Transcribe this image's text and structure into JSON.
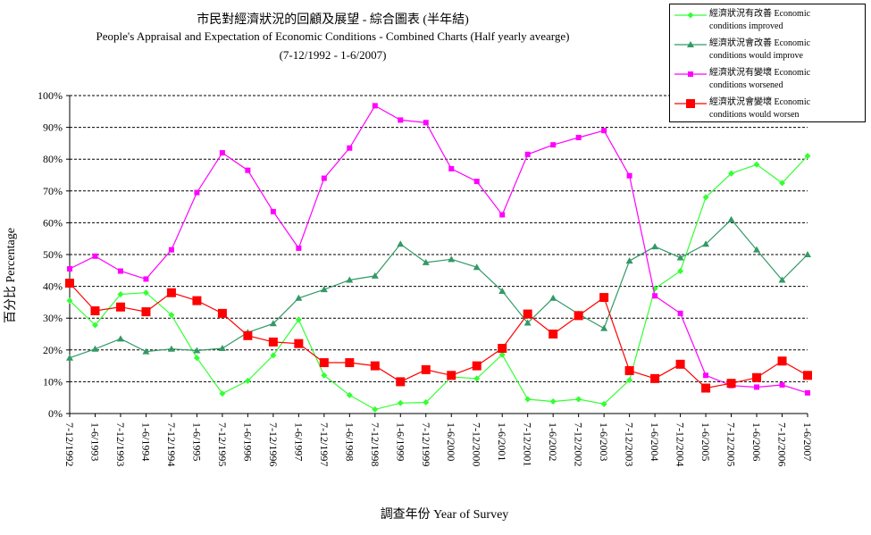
{
  "chart_data": {
    "type": "line",
    "title": "市民對經濟狀況的回顧及展望 - 綜合圖表 (半年結)",
    "subtitle": "People's Appraisal and Expectation of Economic Conditions - Combined Charts  (Half yearly aveargе)",
    "date_range": "(7-12/1992 - 1-6/2007)",
    "xlabel": "調查年份 Year of Survey",
    "ylabel": "百分比 Percentage",
    "ylim": [
      0,
      100
    ],
    "yticks": [
      "0%",
      "10%",
      "20%",
      "30%",
      "40%",
      "50%",
      "60%",
      "70%",
      "80%",
      "90%",
      "100%"
    ],
    "grid": "horizontal-dashed",
    "legend_position": "top-right",
    "categories": [
      "7-12/1992",
      "1-6/1993",
      "7-12/1993",
      "1-6/1994",
      "7-12/1994",
      "1-6/1995",
      "7-12/1995",
      "1-6/1996",
      "7-12/1996",
      "1-6/1997",
      "7-12/1997",
      "1-6/1998",
      "7-12/1998",
      "1-6/1999",
      "7-12/1999",
      "1-6/2000",
      "7-12/2000",
      "1-6/2001",
      "7-12/2001",
      "1-6/2002",
      "7-12/2002",
      "1-6/2003",
      "7-12/2003",
      "1-6/2004",
      "7-12/2004",
      "1-6/2005",
      "7-12/2005",
      "1-6/2006",
      "7-12/2006",
      "1-6/2007"
    ],
    "series": [
      {
        "name": "經濟狀況有改善 Economic conditions improved",
        "legend_lines": [
          "經濟狀況有改善 Economic",
          "conditions improved"
        ],
        "color": "#33ff33",
        "marker": "diamond",
        "values": [
          35.5,
          27.8,
          37.5,
          38.0,
          31.0,
          17.5,
          6.3,
          10.3,
          18.3,
          29.5,
          12.0,
          5.8,
          1.3,
          3.3,
          3.5,
          11.5,
          11.0,
          18.5,
          4.5,
          3.8,
          4.5,
          3.0,
          10.5,
          39.3,
          44.8,
          68.0,
          75.5,
          78.3,
          72.5,
          81.0
        ]
      },
      {
        "name": "經濟狀況會改善 Economic conditions would improve",
        "legend_lines": [
          "經濟狀況會改善 Economic",
          "conditions would improve"
        ],
        "color": "#339966",
        "marker": "triangle",
        "values": [
          17.5,
          20.3,
          23.5,
          19.5,
          20.3,
          19.8,
          20.5,
          25.5,
          28.3,
          36.3,
          39.0,
          42.0,
          43.3,
          53.3,
          47.5,
          48.5,
          46.0,
          38.5,
          28.5,
          36.3,
          31.3,
          26.8,
          48.0,
          52.5,
          49.0,
          53.3,
          61.0,
          51.5,
          42.0,
          50.0
        ]
      },
      {
        "name": "經濟狀況有變壞 Economic conditions worsened",
        "legend_lines": [
          "經濟狀況有變壞 Economic",
          "conditions worsened"
        ],
        "color": "#ff00ff",
        "marker": "square",
        "values": [
          45.5,
          49.5,
          44.8,
          42.3,
          51.5,
          69.5,
          82.0,
          76.5,
          63.5,
          52.0,
          74.0,
          83.5,
          96.8,
          92.3,
          91.5,
          77.0,
          73.0,
          62.5,
          81.5,
          84.5,
          86.8,
          89.0,
          74.8,
          37.0,
          31.5,
          12.0,
          8.8,
          8.3,
          9.0,
          6.5
        ]
      },
      {
        "name": "經濟狀況會變壞 Economic conditions would worsen",
        "legend_lines": [
          "經濟狀況會變壞 Economic",
          "conditions would worsen"
        ],
        "color": "#ff0000",
        "marker": "bigsquare",
        "values": [
          41.0,
          32.3,
          33.5,
          32.0,
          38.0,
          35.5,
          31.5,
          24.5,
          22.5,
          22.0,
          16.0,
          16.0,
          15.0,
          10.0,
          13.8,
          12.0,
          15.0,
          20.5,
          31.3,
          25.0,
          30.8,
          36.5,
          13.5,
          11.0,
          15.5,
          8.0,
          9.5,
          11.3,
          16.5,
          12.0
        ]
      }
    ]
  }
}
